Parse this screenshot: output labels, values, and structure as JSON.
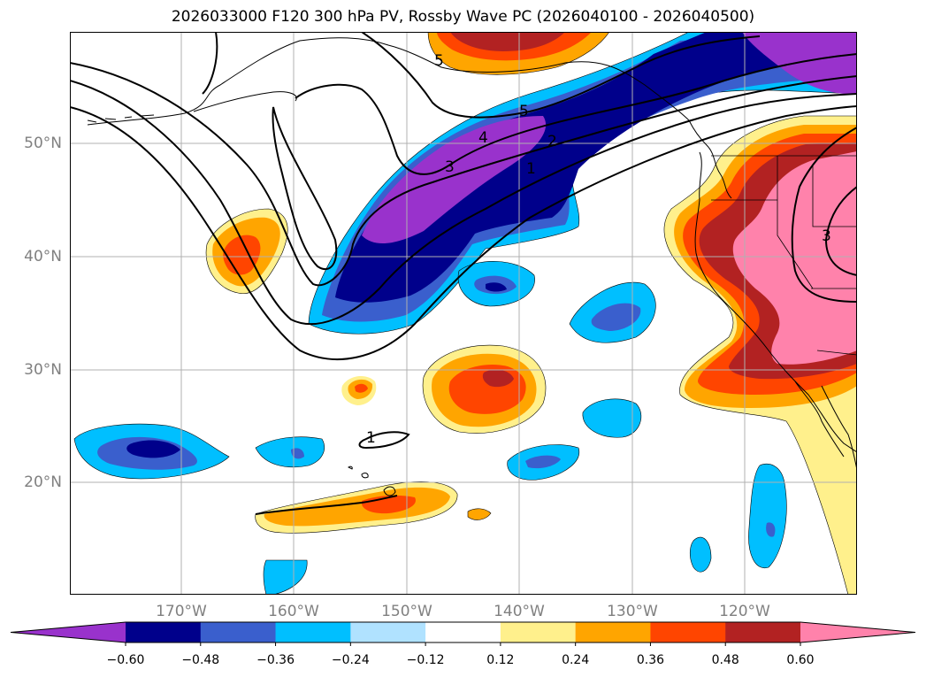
{
  "title": "2026033000 F120 300 hPa PV, Rossby Wave PC (2026040100 - 2026040500)",
  "map": {
    "lat_labels": [
      "50°N",
      "40°N",
      "30°N",
      "20°N"
    ],
    "lon_labels": [
      "170°W",
      "160°W",
      "150°W",
      "140°W",
      "130°W",
      "120°W"
    ],
    "contour_labels": [
      "5",
      "5",
      "4",
      "3",
      "2",
      "1",
      "1",
      "3"
    ]
  },
  "colorbar": {
    "colors": [
      "#9932cc",
      "#00008b",
      "#3a5fcd",
      "#00bfff",
      "#b0e2ff",
      "#ffffff",
      "#fff08c",
      "#ffa500",
      "#ff4500",
      "#b22222",
      "#ff82ab"
    ],
    "labels": [
      "−0.60",
      "−0.48",
      "−0.36",
      "−0.24",
      "−0.12",
      "0.12",
      "0.24",
      "0.36",
      "0.48",
      "0.60"
    ]
  }
}
